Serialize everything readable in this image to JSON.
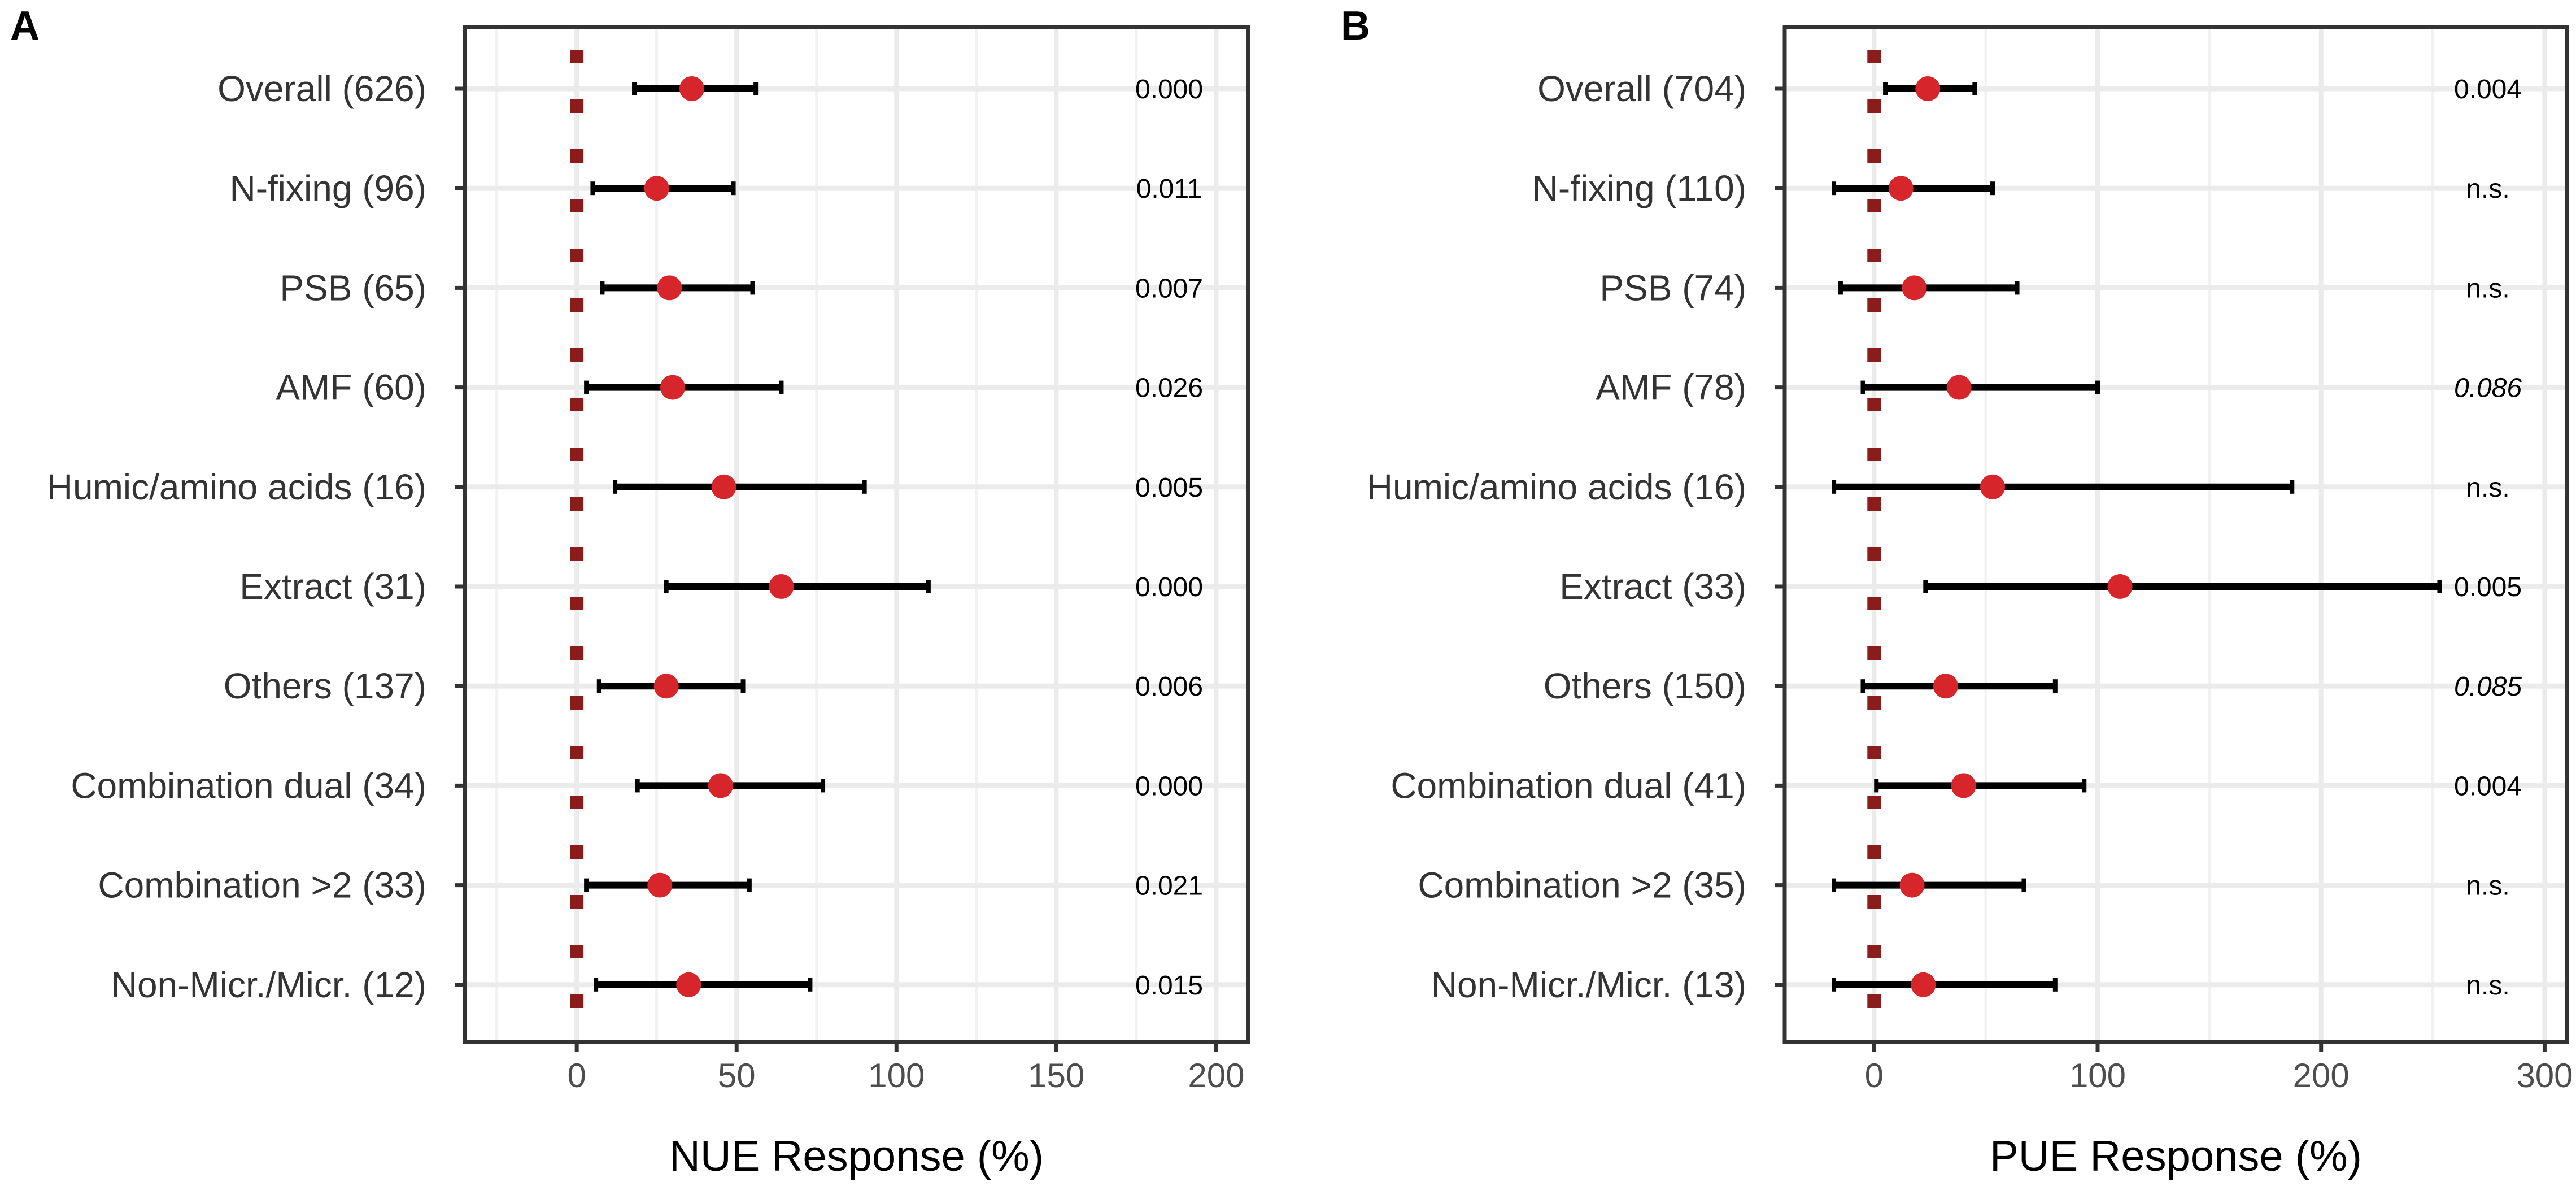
{
  "colors": {
    "point": "#d7262b",
    "reference": "#8b1c1c",
    "errorbar": "#000000",
    "grid_major": "#ebebeb",
    "grid_minor": "#f2f2f2",
    "frame": "#333333"
  },
  "chart_data": [
    {
      "panel": "A",
      "type": "forest",
      "xlabel": "NUE Response (%)",
      "xlim": [
        -35,
        210
      ],
      "xticks": [
        0,
        50,
        100,
        150,
        200
      ],
      "reference_line": 0,
      "rows": [
        {
          "label": "Overall (626)",
          "estimate": 36,
          "lower": 18,
          "upper": 56,
          "p": "0.000",
          "italic": false
        },
        {
          "label": "N-fixing (96)",
          "estimate": 25,
          "lower": 5,
          "upper": 49,
          "p": "0.011",
          "italic": false
        },
        {
          "label": "PSB (65)",
          "estimate": 29,
          "lower": 8,
          "upper": 55,
          "p": "0.007",
          "italic": false
        },
        {
          "label": "AMF (60)",
          "estimate": 30,
          "lower": 3,
          "upper": 64,
          "p": "0.026",
          "italic": false
        },
        {
          "label": "Humic/amino acids (16)",
          "estimate": 46,
          "lower": 12,
          "upper": 90,
          "p": "0.005",
          "italic": false
        },
        {
          "label": "Extract (31)",
          "estimate": 64,
          "lower": 28,
          "upper": 110,
          "p": "0.000",
          "italic": false
        },
        {
          "label": "Others (137)",
          "estimate": 28,
          "lower": 7,
          "upper": 52,
          "p": "0.006",
          "italic": false
        },
        {
          "label": "Combination dual (34)",
          "estimate": 45,
          "lower": 19,
          "upper": 77,
          "p": "0.000",
          "italic": false
        },
        {
          "label": "Combination >2 (33)",
          "estimate": 26,
          "lower": 3,
          "upper": 54,
          "p": "0.021",
          "italic": false
        },
        {
          "label": "Non-Micr./Micr. (12)",
          "estimate": 35,
          "lower": 6,
          "upper": 73,
          "p": "0.015",
          "italic": false
        }
      ]
    },
    {
      "panel": "B",
      "type": "forest",
      "xlabel": "PUE Response (%)",
      "xlim": [
        -40,
        310
      ],
      "xticks": [
        0,
        100,
        200,
        300
      ],
      "reference_line": 0,
      "rows": [
        {
          "label": "Overall (704)",
          "estimate": 24,
          "lower": 5,
          "upper": 45,
          "p": "0.004",
          "italic": false
        },
        {
          "label": "N-fixing (110)",
          "estimate": 12,
          "lower": -18,
          "upper": 53,
          "p": "n.s.",
          "italic": false
        },
        {
          "label": "PSB (74)",
          "estimate": 18,
          "lower": -15,
          "upper": 64,
          "p": "n.s.",
          "italic": false
        },
        {
          "label": "AMF (78)",
          "estimate": 38,
          "lower": -5,
          "upper": 100,
          "p": "0.086",
          "italic": true
        },
        {
          "label": "Humic/amino acids (16)",
          "estimate": 53,
          "lower": -18,
          "upper": 187,
          "p": "n.s.",
          "italic": false
        },
        {
          "label": "Extract (33)",
          "estimate": 110,
          "lower": 23,
          "upper": 253,
          "p": "0.005",
          "italic": false
        },
        {
          "label": "Others (150)",
          "estimate": 32,
          "lower": -5,
          "upper": 81,
          "p": "0.085",
          "italic": true
        },
        {
          "label": "Combination dual (41)",
          "estimate": 40,
          "lower": 1,
          "upper": 94,
          "p": "0.004",
          "italic": false
        },
        {
          "label": "Combination >2 (35)",
          "estimate": 17,
          "lower": -18,
          "upper": 67,
          "p": "n.s.",
          "italic": false
        },
        {
          "label": "Non-Micr./Micr. (13)",
          "estimate": 22,
          "lower": -18,
          "upper": 81,
          "p": "n.s.",
          "italic": false
        }
      ]
    }
  ]
}
